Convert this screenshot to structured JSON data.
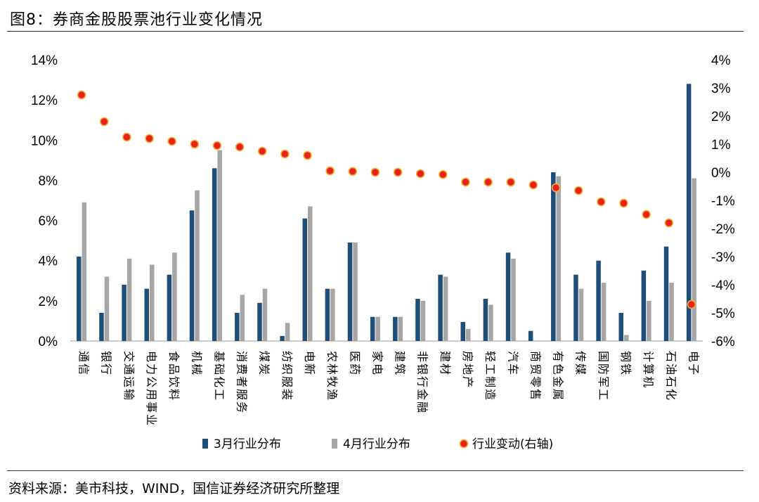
{
  "title": "图8：券商金股股票池行业变化情况",
  "source": "资料来源：美市科技，WIND，国信证券经济研究所整理",
  "colors": {
    "march": "#1f4e79",
    "april": "#a6a6a6",
    "change_fill": "#e8211f",
    "change_stroke": "#f2b134"
  },
  "chart_data": {
    "type": "bar",
    "categories": [
      "通信",
      "银行",
      "交通运输",
      "电力公用事业",
      "食品饮料",
      "机械",
      "基础化工",
      "消费者服务",
      "煤炭",
      "纺织服装",
      "电新",
      "农林牧渔",
      "医药",
      "家电",
      "建筑",
      "非银行金融",
      "建材",
      "房地产",
      "轻工制造",
      "汽车",
      "商贸零售",
      "有色金属",
      "传媒",
      "国防军工",
      "钢铁",
      "计算机",
      "石油石化",
      "电子"
    ],
    "series": [
      {
        "name": "3月行业分布",
        "axis": "left",
        "kind": "bar",
        "values": [
          4.2,
          1.4,
          2.8,
          2.6,
          3.3,
          6.5,
          8.6,
          1.4,
          1.9,
          0.25,
          6.1,
          2.6,
          4.9,
          1.2,
          1.2,
          2.1,
          3.3,
          0.95,
          2.1,
          4.4,
          0.5,
          8.4,
          3.3,
          4.0,
          1.4,
          3.5,
          4.7,
          12.8
        ]
      },
      {
        "name": "4月行业分布",
        "axis": "left",
        "kind": "bar",
        "values": [
          6.9,
          3.2,
          4.1,
          3.8,
          4.4,
          7.5,
          9.5,
          2.3,
          2.6,
          0.9,
          6.7,
          2.6,
          4.9,
          1.2,
          1.2,
          2.0,
          3.2,
          0.6,
          1.8,
          4.1,
          0.0,
          8.2,
          2.6,
          2.9,
          0.3,
          2.0,
          2.9,
          8.1
        ]
      },
      {
        "name": "行业变动(右轴)",
        "axis": "right",
        "kind": "scatter",
        "values": [
          2.75,
          1.8,
          1.25,
          1.2,
          1.1,
          1.0,
          0.95,
          0.9,
          0.75,
          0.65,
          0.6,
          0.05,
          0.03,
          0.0,
          0.0,
          -0.05,
          -0.08,
          -0.35,
          -0.35,
          -0.35,
          -0.45,
          -0.55,
          -0.65,
          -1.05,
          -1.1,
          -1.5,
          -1.8,
          -4.7
        ]
      }
    ],
    "y_left": {
      "ticks": [
        "0%",
        "2%",
        "4%",
        "6%",
        "8%",
        "10%",
        "12%",
        "14%"
      ],
      "ylim": [
        0,
        14
      ]
    },
    "y_right": {
      "ticks": [
        "-6%",
        "-5%",
        "-4%",
        "-3%",
        "-2%",
        "-1%",
        "0%",
        "1%",
        "2%",
        "3%",
        "4%"
      ],
      "ylim": [
        -6,
        4
      ]
    },
    "legend_position": "bottom",
    "grid": false
  }
}
